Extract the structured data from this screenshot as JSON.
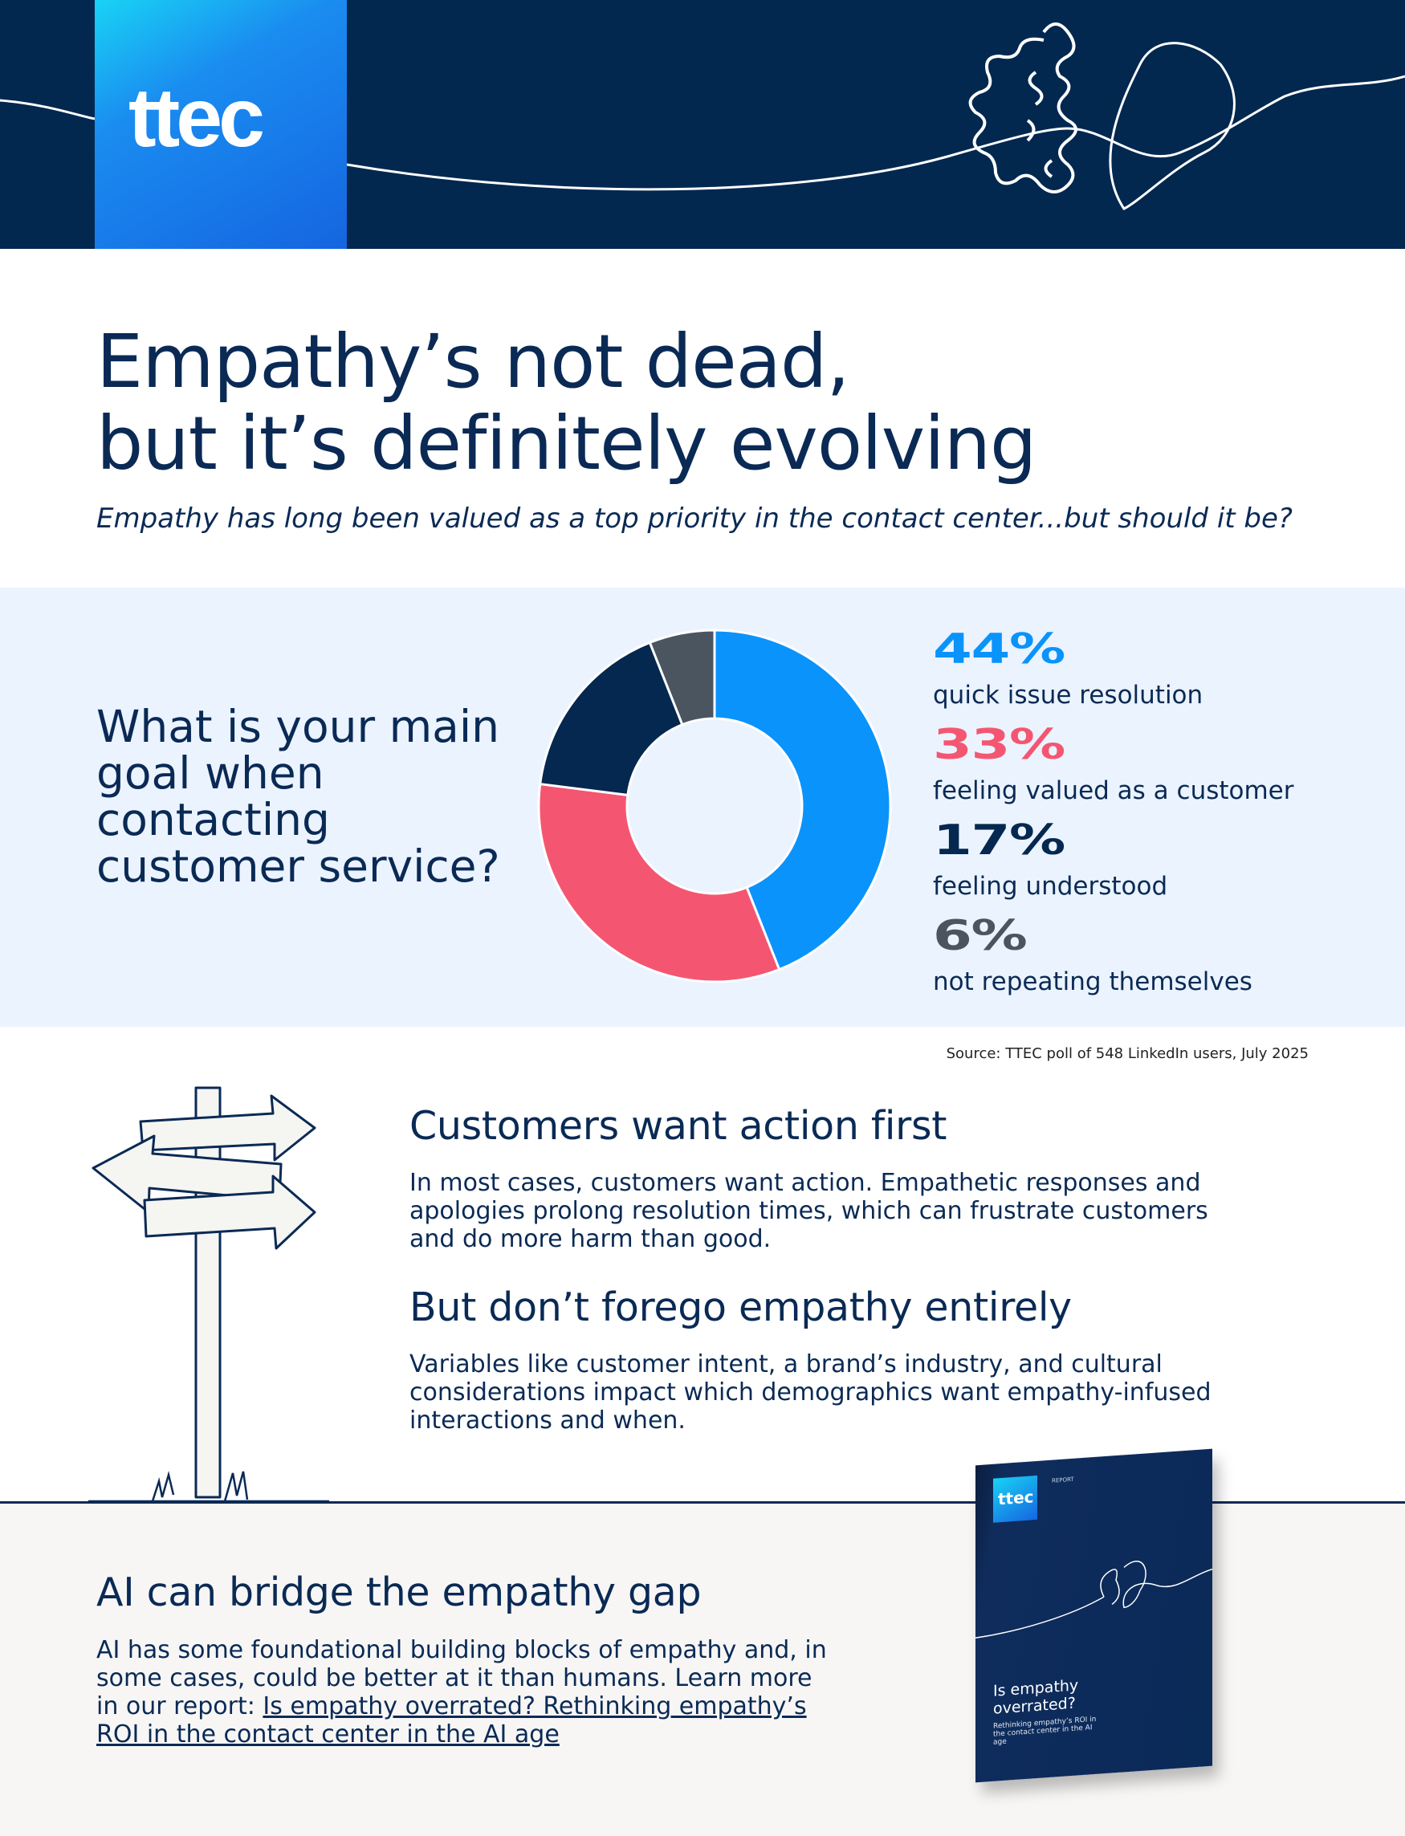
{
  "header": {
    "logo": "ttec"
  },
  "title": {
    "line1": "Empathy’s not dead,",
    "line2": "but it’s definitely evolving",
    "subtitle": "Empathy has long been valued as a top priority in the contact center...but should it be?"
  },
  "poll": {
    "question": "What is your main goal when contacting customer service?",
    "source": "Source: TTEC poll of 548 LinkedIn users, July 2025"
  },
  "chart_data": {
    "type": "pie",
    "donut": true,
    "categories": [
      "quick issue resolution",
      "feeling valued as a customer",
      "feeling understood",
      "not repeating themselves"
    ],
    "values": [
      44,
      33,
      17,
      6
    ],
    "labels": [
      "44%",
      "33%",
      "17%",
      "6%"
    ],
    "colors": [
      "#0a93fb",
      "#f45671",
      "#04284f",
      "#4a5560"
    ]
  },
  "section1": {
    "heading": "Customers want action first",
    "body": "In most cases, customers want action. Empathetic responses and apologies prolong resolution times, which can frustrate customers and do more harm than good."
  },
  "section2": {
    "heading": "But don’t forego empathy entirely",
    "body": "Variables like customer intent, a brand’s industry, and cultural considerations impact which demographics want empathy-infused interactions and when."
  },
  "section3": {
    "heading": "AI can bridge the empathy gap",
    "body": "AI has some foundational building blocks of empathy and, in some cases, could be better at it than humans. Learn more in our report: ",
    "link": "Is empathy overrated? Rethinking empathy’s ROI in the contact center in the AI age"
  },
  "report_cover": {
    "logo": "ttec",
    "tag": "REPORT",
    "title": "Is empathy overrated?",
    "subtitle": "Rethinking empathy’s ROI in the contact center in the AI age"
  }
}
